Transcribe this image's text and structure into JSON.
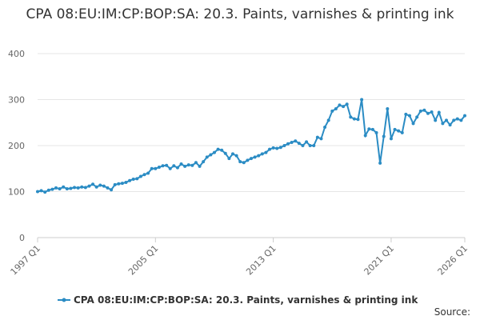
{
  "chart_data": {
    "type": "line",
    "title": "CPA 08:EU:IM:CP:BOP:SA: 20.3. Paints, varnishes & printing ink",
    "source": "Source:",
    "categories": [
      "1997 Q1",
      null,
      null,
      null,
      null,
      null,
      null,
      null,
      null,
      null,
      null,
      null,
      null,
      null,
      null,
      null,
      null,
      null,
      null,
      null,
      null,
      null,
      null,
      null,
      null,
      null,
      null,
      null,
      null,
      null,
      null,
      null,
      "2005 Q1",
      null,
      null,
      null,
      null,
      null,
      null,
      null,
      null,
      null,
      null,
      null,
      null,
      null,
      null,
      null,
      null,
      null,
      null,
      null,
      null,
      null,
      null,
      null,
      null,
      null,
      null,
      null,
      null,
      null,
      null,
      null,
      "2013 Q1",
      null,
      null,
      null,
      null,
      null,
      null,
      null,
      null,
      null,
      null,
      null,
      null,
      null,
      null,
      null,
      null,
      null,
      null,
      null,
      null,
      null,
      null,
      null,
      null,
      null,
      null,
      null,
      null,
      null,
      null,
      null,
      "2021 Q1",
      null,
      null,
      null,
      null,
      null,
      null,
      null,
      null,
      null,
      null,
      null,
      null,
      null,
      null,
      null,
      null,
      null,
      null,
      null,
      "2026 Q1"
    ],
    "series": [
      {
        "name": "CPA 08:EU:IM:CP:BOP:SA: 20.3. Paints, varnishes & printing ink",
        "color": "#2b8cc4",
        "values": [
          100,
          102,
          99,
          103,
          105,
          108,
          106,
          110,
          106,
          107,
          109,
          108,
          110,
          109,
          112,
          116,
          110,
          114,
          112,
          108,
          104,
          115,
          117,
          118,
          120,
          124,
          127,
          128,
          133,
          137,
          140,
          150,
          150,
          153,
          156,
          157,
          150,
          156,
          152,
          160,
          155,
          158,
          157,
          163,
          155,
          165,
          175,
          180,
          185,
          192,
          190,
          183,
          172,
          182,
          178,
          165,
          163,
          168,
          172,
          175,
          178,
          182,
          185,
          192,
          195,
          194,
          196,
          200,
          204,
          207,
          210,
          205,
          200,
          208,
          200,
          200,
          218,
          215,
          240,
          255,
          275,
          280,
          288,
          285,
          290,
          262,
          258,
          257,
          300,
          222,
          236,
          235,
          228,
          162,
          220,
          280,
          215,
          235,
          232,
          228,
          268,
          265,
          248,
          262,
          275,
          277,
          270,
          273,
          255,
          272,
          248,
          255,
          245,
          255,
          258,
          255,
          265
        ]
      }
    ],
    "ylim": [
      0,
      400
    ],
    "yticks": [
      0,
      100,
      200,
      300,
      400
    ],
    "grid": true,
    "legend": "bottom"
  }
}
